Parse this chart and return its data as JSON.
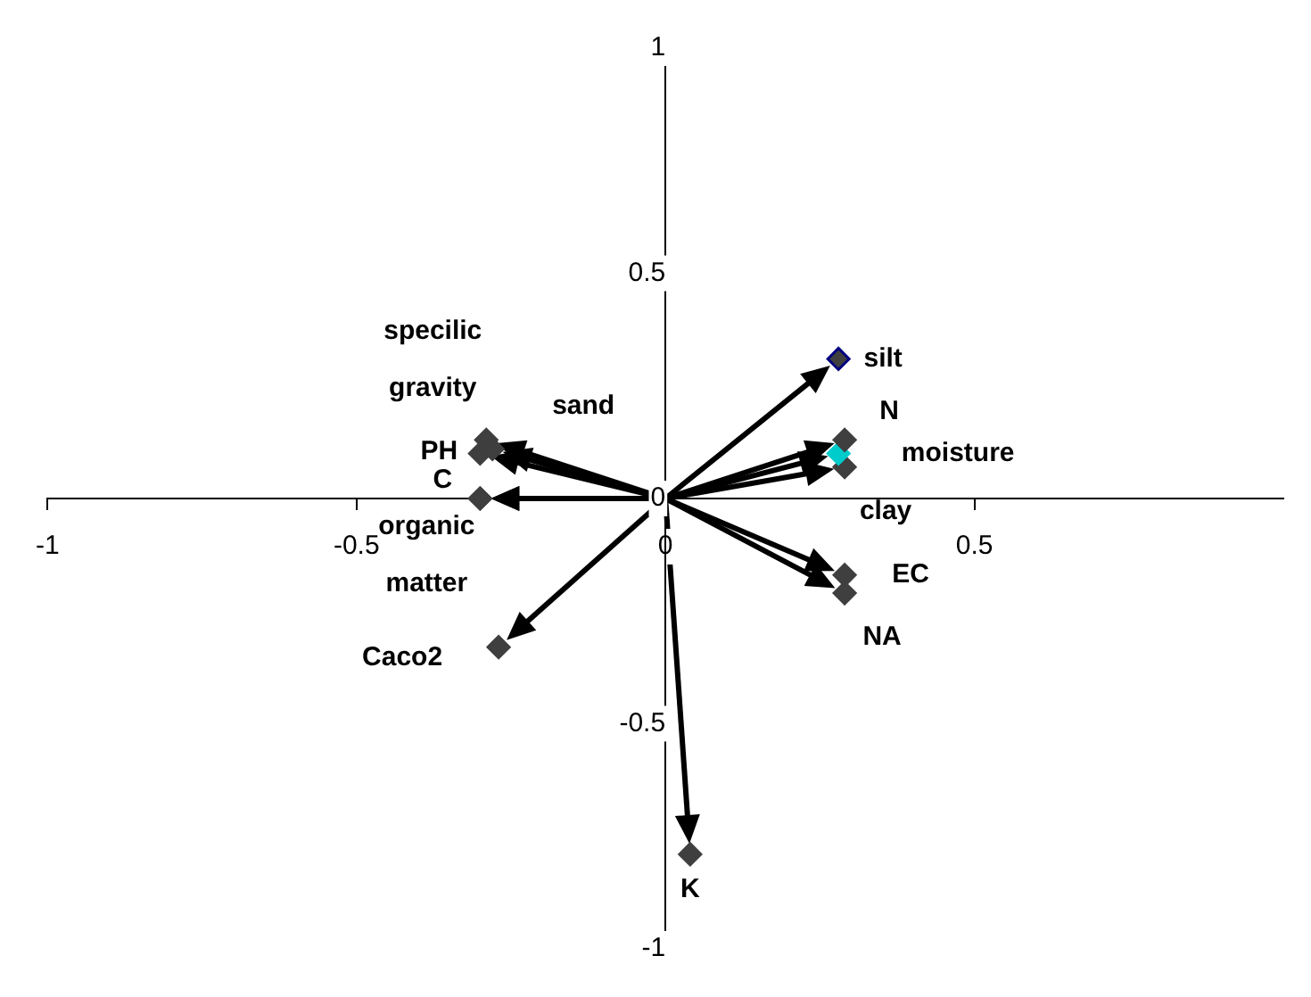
{
  "chart_data": {
    "type": "scatter",
    "marker": "diamond",
    "legend": false,
    "grid": false,
    "xlim": [
      -1,
      1
    ],
    "xticks": [
      -1,
      -0.5,
      0,
      0.5
    ],
    "ylim": [
      -1,
      1
    ],
    "yticks": [
      -1,
      -0.5,
      0,
      0.5,
      1
    ],
    "series": [
      {
        "name": "silt",
        "color": "#000080",
        "x": [
          0.28
        ],
        "values": [
          0.31
        ]
      },
      {
        "name": "N",
        "color": "#3f3f3f",
        "x": [
          0.29
        ],
        "values": [
          0.13
        ]
      },
      {
        "name": "moisture",
        "color": "#00cccc",
        "x": [
          0.28
        ],
        "values": [
          0.1
        ]
      },
      {
        "name": "clay",
        "color": "#3f3f3f",
        "x": [
          0.29
        ],
        "values": [
          0.07
        ]
      },
      {
        "name": "EC",
        "color": "#3f3f3f",
        "x": [
          0.29
        ],
        "values": [
          -0.17
        ]
      },
      {
        "name": "NA",
        "color": "#3f3f3f",
        "x": [
          0.29
        ],
        "values": [
          -0.21
        ]
      },
      {
        "name": "sand",
        "color": "#3f3f3f",
        "x": [
          -0.28
        ],
        "values": [
          0.11
        ]
      },
      {
        "name": "specilic gravity",
        "color": "#3f3f3f",
        "x": [
          -0.29
        ],
        "values": [
          0.13
        ]
      },
      {
        "name": "PH",
        "color": "#3f3f3f",
        "x": [
          -0.3
        ],
        "values": [
          0.1
        ]
      },
      {
        "name": "C",
        "color": "#3f3f3f",
        "x": [
          -0.3
        ],
        "values": [
          0
        ]
      },
      {
        "name": "organic matter",
        "color": "#3f3f3f",
        "x": [
          -0.3
        ],
        "values": [
          0
        ]
      },
      {
        "name": "Caco2",
        "color": "#3f3f3f",
        "x": [
          -0.27
        ],
        "values": [
          -0.33
        ]
      },
      {
        "name": "K",
        "color": "#3f3f3f",
        "x": [
          0.04
        ],
        "values": [
          -0.79
        ]
      }
    ]
  }
}
